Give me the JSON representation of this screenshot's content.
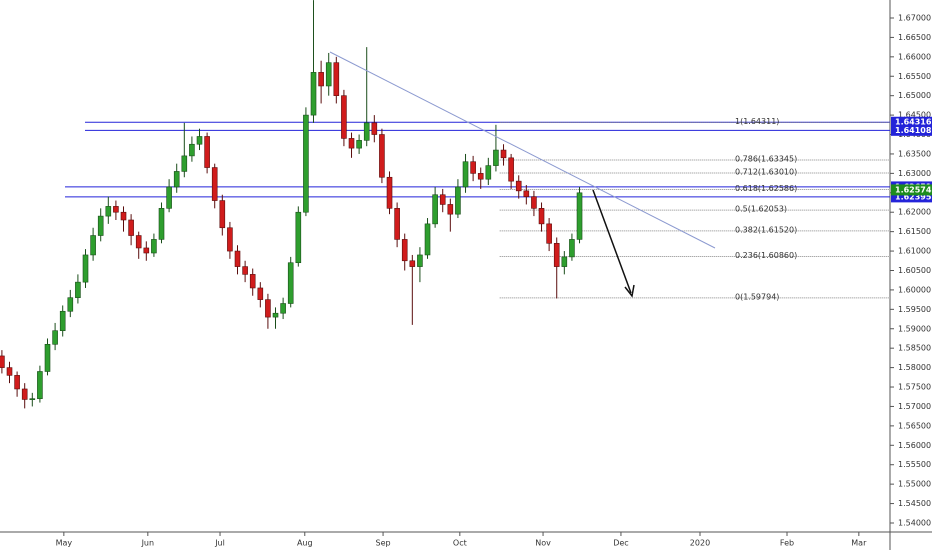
{
  "chart_data": {
    "type": "candlestick",
    "x": [
      0,
      2,
      4,
      6,
      8,
      10,
      12,
      14,
      16,
      18,
      20,
      22,
      24,
      26,
      28,
      30,
      32,
      34,
      36,
      38,
      40,
      42,
      44,
      46,
      48,
      50,
      52,
      54,
      56,
      58,
      60,
      62,
      64,
      66,
      68,
      70,
      72,
      74,
      76,
      78,
      80,
      82,
      84,
      86,
      88,
      90,
      92,
      94,
      96,
      98,
      100,
      102,
      104,
      106,
      108,
      110,
      112,
      114,
      116,
      118,
      120,
      122,
      124,
      126,
      128,
      130,
      132,
      134,
      136,
      138,
      140,
      142,
      144,
      146,
      148,
      150,
      152
    ],
    "open": [
      1.583,
      1.58,
      1.578,
      1.5745,
      1.5718,
      1.572,
      1.579,
      1.586,
      1.5895,
      1.5945,
      1.598,
      1.602,
      1.609,
      1.614,
      1.619,
      1.6215,
      1.62,
      1.618,
      1.614,
      1.6108,
      1.6095,
      1.613,
      1.621,
      1.6265,
      1.6305,
      1.6345,
      1.6375,
      1.6395,
      1.6315,
      1.623,
      1.616,
      1.61,
      1.606,
      1.604,
      1.6005,
      1.5975,
      1.593,
      1.594,
      1.5965,
      1.607,
      1.62,
      1.645,
      1.656,
      1.6525,
      1.6585,
      1.65,
      1.639,
      1.6365,
      1.6385,
      1.643,
      1.64,
      1.629,
      1.621,
      1.613,
      1.6075,
      1.606,
      1.609,
      1.617,
      1.6245,
      1.622,
      1.6195,
      1.6265,
      1.633,
      1.63,
      1.6285,
      1.632,
      1.636,
      1.634,
      1.628,
      1.6255,
      1.624,
      1.621,
      1.617,
      1.612,
      1.606,
      1.6085,
      1.613
    ],
    "high": [
      1.5845,
      1.5815,
      1.579,
      1.576,
      1.5735,
      1.5805,
      1.5875,
      1.5915,
      1.596,
      1.6,
      1.604,
      1.6105,
      1.616,
      1.621,
      1.624,
      1.623,
      1.6215,
      1.6195,
      1.615,
      1.6125,
      1.6145,
      1.6225,
      1.6285,
      1.6325,
      1.643,
      1.6395,
      1.6415,
      1.6405,
      1.6325,
      1.6245,
      1.6175,
      1.6115,
      1.6075,
      1.6055,
      1.602,
      1.599,
      1.5955,
      1.598,
      1.6085,
      1.6215,
      1.647,
      1.6746,
      1.659,
      1.661,
      1.66,
      1.6515,
      1.6405,
      1.64,
      1.6625,
      1.645,
      1.6415,
      1.6305,
      1.6225,
      1.6145,
      1.609,
      1.611,
      1.6185,
      1.6265,
      1.626,
      1.6235,
      1.6285,
      1.635,
      1.6345,
      1.6315,
      1.634,
      1.6425,
      1.6375,
      1.635,
      1.6295,
      1.627,
      1.6255,
      1.6225,
      1.6185,
      1.6135,
      1.61,
      1.6145,
      1.6265
    ],
    "low": [
      1.5785,
      1.576,
      1.5725,
      1.5695,
      1.57,
      1.571,
      1.578,
      1.5845,
      1.588,
      1.593,
      1.5965,
      1.6005,
      1.6075,
      1.6125,
      1.617,
      1.618,
      1.615,
      1.6115,
      1.608,
      1.6075,
      1.6085,
      1.612,
      1.62,
      1.625,
      1.629,
      1.633,
      1.636,
      1.63,
      1.621,
      1.614,
      1.608,
      1.604,
      1.602,
      1.5985,
      1.5955,
      1.59,
      1.59,
      1.5925,
      1.5955,
      1.606,
      1.619,
      1.643,
      1.648,
      1.65,
      1.648,
      1.637,
      1.634,
      1.635,
      1.637,
      1.638,
      1.6275,
      1.6195,
      1.611,
      1.605,
      1.591,
      1.602,
      1.608,
      1.616,
      1.62,
      1.615,
      1.6185,
      1.625,
      1.628,
      1.626,
      1.627,
      1.6305,
      1.632,
      1.626,
      1.6235,
      1.622,
      1.619,
      1.615,
      1.61,
      1.5978,
      1.604,
      1.6075,
      1.612
    ],
    "close": [
      1.58,
      1.578,
      1.5745,
      1.5718,
      1.572,
      1.579,
      1.586,
      1.5895,
      1.5945,
      1.598,
      1.602,
      1.609,
      1.614,
      1.619,
      1.6215,
      1.62,
      1.618,
      1.614,
      1.6108,
      1.6095,
      1.613,
      1.621,
      1.6265,
      1.6305,
      1.6345,
      1.6375,
      1.6395,
      1.6315,
      1.623,
      1.616,
      1.61,
      1.606,
      1.604,
      1.6005,
      1.5975,
      1.593,
      1.594,
      1.5965,
      1.607,
      1.62,
      1.645,
      1.656,
      1.6525,
      1.6585,
      1.65,
      1.639,
      1.6365,
      1.6385,
      1.643,
      1.64,
      1.629,
      1.621,
      1.613,
      1.6075,
      1.606,
      1.609,
      1.617,
      1.6245,
      1.622,
      1.6195,
      1.6265,
      1.633,
      1.63,
      1.6285,
      1.632,
      1.636,
      1.634,
      1.628,
      1.6255,
      1.624,
      1.621,
      1.617,
      1.612,
      1.606,
      1.6085,
      1.613,
      1.625
    ],
    "up_color": "#2e9e2e",
    "down_color": "#d01c1c",
    "xlim": [
      -0.5,
      233.7
    ],
    "xticks": [
      {
        "value": 16.3,
        "label": "May"
      },
      {
        "value": 38.4,
        "label": "Jun"
      },
      {
        "value": 57.4,
        "label": "Jul"
      },
      {
        "value": 79.7,
        "label": "Aug"
      },
      {
        "value": 100.3,
        "label": "Sep"
      },
      {
        "value": 120.5,
        "label": "Oct"
      },
      {
        "value": 142.4,
        "label": "Nov"
      },
      {
        "value": 162.9,
        "label": "Dec"
      },
      {
        "value": 183.7,
        "label": "2020"
      },
      {
        "value": 206.6,
        "label": "Feb"
      },
      {
        "value": 225.5,
        "label": "Mar"
      }
    ],
    "ylim": [
      1.53768,
      1.67463
    ],
    "yticks": [
      {
        "value": 1.54,
        "label": "1.54000"
      },
      {
        "value": 1.545,
        "label": "1.54500"
      },
      {
        "value": 1.55,
        "label": "1.55000"
      },
      {
        "value": 1.555,
        "label": "1.55500"
      },
      {
        "value": 1.56,
        "label": "1.56000"
      },
      {
        "value": 1.565,
        "label": "1.56500"
      },
      {
        "value": 1.57,
        "label": "1.57000"
      },
      {
        "value": 1.575,
        "label": "1.57500"
      },
      {
        "value": 1.58,
        "label": "1.58000"
      },
      {
        "value": 1.585,
        "label": "1.58500"
      },
      {
        "value": 1.59,
        "label": "1.59000"
      },
      {
        "value": 1.595,
        "label": "1.59500"
      },
      {
        "value": 1.6,
        "label": "1.60000"
      },
      {
        "value": 1.605,
        "label": "1.60500"
      },
      {
        "value": 1.61,
        "label": "1.61000"
      },
      {
        "value": 1.615,
        "label": "1.61500"
      },
      {
        "value": 1.62,
        "label": "1.62000"
      },
      {
        "value": 1.625,
        "label": "1.62500"
      },
      {
        "value": 1.63,
        "label": "1.63000"
      },
      {
        "value": 1.635,
        "label": "1.63500"
      },
      {
        "value": 1.64,
        "label": "1.64000"
      },
      {
        "value": 1.645,
        "label": "1.64500"
      },
      {
        "value": 1.65,
        "label": "1.65000"
      },
      {
        "value": 1.655,
        "label": "1.65500"
      },
      {
        "value": 1.66,
        "label": "1.66000"
      },
      {
        "value": 1.665,
        "label": "1.66500"
      },
      {
        "value": 1.67,
        "label": "1.67000"
      }
    ],
    "hlines": [
      1.64316,
      1.64108,
      1.62651,
      1.62395
    ],
    "hline_color": "#2323d9",
    "last_price": 1.62574,
    "last_price_color": "#1e8c1e",
    "fib_levels": [
      {
        "value": 1.64311,
        "label": "1(1.64311)"
      },
      {
        "value": 1.63345,
        "label": "0.786(1.63345)"
      },
      {
        "value": 1.6301,
        "label": "0.712(1.63010)"
      },
      {
        "value": 1.62586,
        "label": "0.618(1.62586)"
      },
      {
        "value": 1.62053,
        "label": "0.5(1.62053)"
      },
      {
        "value": 1.6152,
        "label": "0.382(1.61520)"
      },
      {
        "value": 1.6086,
        "label": "0.236(1.60860)"
      },
      {
        "value": 1.59794,
        "label": "0(1.59794)"
      }
    ],
    "fib_start_x": 131
  }
}
